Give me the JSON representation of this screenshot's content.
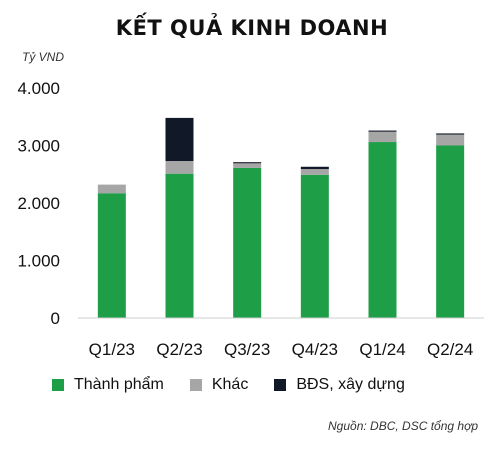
{
  "chart_data": {
    "type": "bar",
    "stacked": true,
    "title": "KẾT QUẢ KINH DOANH",
    "ylabel": "Tỷ VND",
    "ylim": [
      0,
      4000
    ],
    "yticks": [
      0,
      1000,
      2000,
      3000,
      4000
    ],
    "ytick_labels": [
      "0",
      "1.000",
      "2.000",
      "3.000",
      "4.000"
    ],
    "categories": [
      "Q1/23",
      "Q2/23",
      "Q3/23",
      "Q4/23",
      "Q1/24",
      "Q2/24"
    ],
    "series": [
      {
        "name": "Thành phẩm",
        "color": "#1e9e47",
        "values": [
          2170,
          2510,
          2610,
          2490,
          3060,
          3000
        ]
      },
      {
        "name": "Khác",
        "color": "#a6a6a6",
        "values": [
          150,
          220,
          80,
          100,
          180,
          190
        ]
      },
      {
        "name": "BĐS, xây dựng",
        "color": "#111827",
        "values": [
          0,
          750,
          20,
          40,
          20,
          20
        ]
      }
    ],
    "legend_position": "bottom",
    "grid": false,
    "source": "Nguồn: DBC, DSC tổng hợp"
  }
}
